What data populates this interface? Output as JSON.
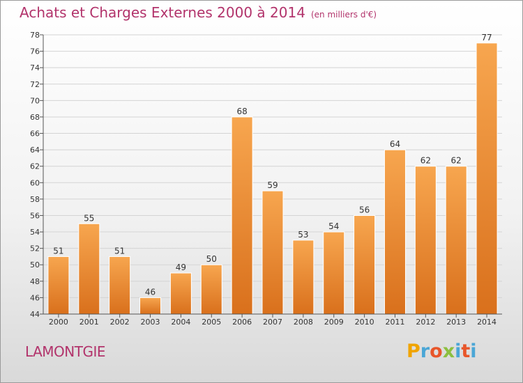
{
  "header": {
    "title": "Achats et Charges Externes 2000 à 2014",
    "subtitle": "(en milliers d'€)"
  },
  "footer": {
    "commune": "LAMONTGIE",
    "logo_letters": [
      "P",
      "r",
      "o",
      "x",
      "i",
      "t",
      "i"
    ],
    "logo_colors": [
      "#f0a400",
      "#4aa6d6",
      "#e8562a",
      "#8cbf3f",
      "#4aa6d6",
      "#e8562a",
      "#4aa6d6"
    ]
  },
  "colors": {
    "bar_top": "#f7a64f",
    "bar_bottom": "#d9701c",
    "title": "#b2336b"
  },
  "chart_data": {
    "type": "bar",
    "categories": [
      "2000",
      "2001",
      "2002",
      "2003",
      "2004",
      "2005",
      "2006",
      "2007",
      "2008",
      "2009",
      "2010",
      "2011",
      "2012",
      "2013",
      "2014"
    ],
    "values": [
      51,
      55,
      51,
      46,
      49,
      50,
      68,
      59,
      53,
      54,
      56,
      64,
      62,
      62,
      77
    ],
    "ylim": [
      44,
      78
    ],
    "yticks": [
      44,
      46,
      48,
      50,
      52,
      54,
      56,
      58,
      60,
      62,
      64,
      66,
      68,
      70,
      72,
      74,
      76,
      78
    ],
    "grid": true,
    "legend": "none"
  }
}
